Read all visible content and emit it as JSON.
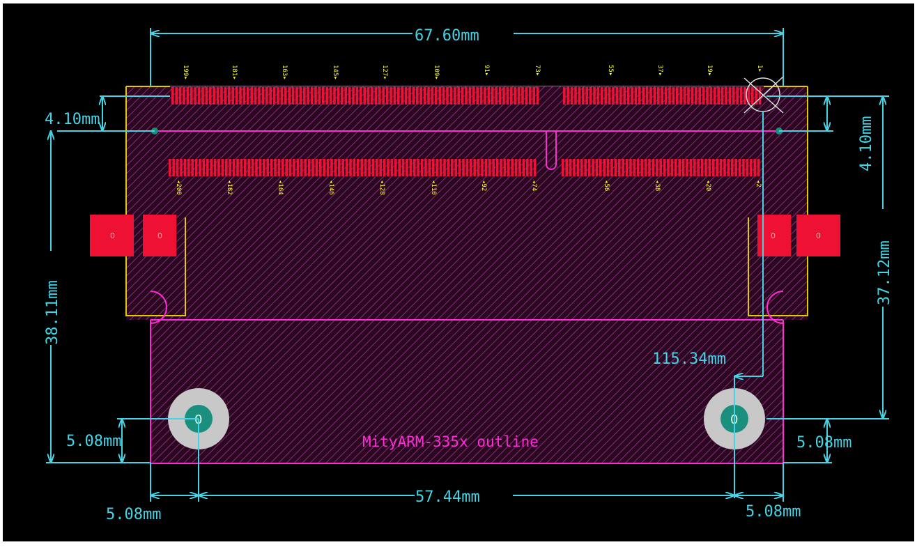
{
  "dimensions": {
    "top_width": "67.60mm",
    "left_offset": "4.10mm",
    "right_offset": "4.10mm",
    "left_height": "38.11mm",
    "right_height": "37.12mm",
    "diag": "115.34mm",
    "left_hole_height": "5.08mm",
    "right_hole_height": "5.08mm",
    "hole_spacing": "57.44mm",
    "left_hole_inset": "5.08mm",
    "right_hole_inset": "5.08mm"
  },
  "outline_label": "MityARM-335x outline",
  "pins_top": [
    "199",
    "181",
    "163",
    "145",
    "127",
    "109",
    "91",
    "73",
    "55",
    "37",
    "19",
    "1"
  ],
  "pins_bottom": [
    "200",
    "182",
    "164",
    "146",
    "128",
    "110",
    "92",
    "74",
    "56",
    "38",
    "20",
    "2"
  ],
  "pad_label": "0",
  "hole_label": "0",
  "colors": {
    "background": "#000000",
    "dimension": "#44d4e6",
    "outline": "#ff2bd6",
    "pads": "#ee1133",
    "silkscreen": "#ffff33",
    "courtyard": "#e6c800"
  }
}
